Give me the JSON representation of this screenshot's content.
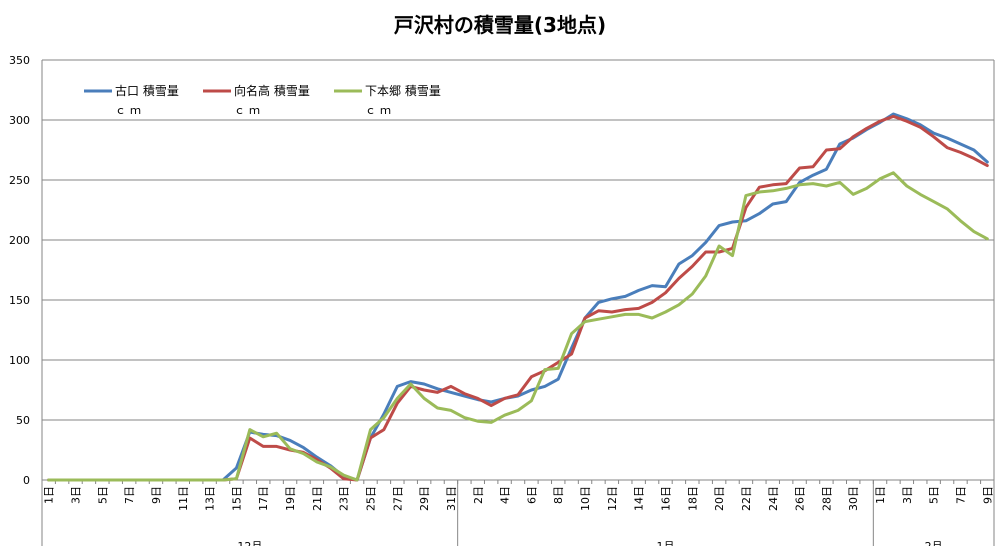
{
  "chart_data": {
    "type": "line",
    "title": "戸沢村の積雪量(3地点)",
    "ylim": [
      0,
      350
    ],
    "yticks": [
      0,
      50,
      100,
      150,
      200,
      250,
      300,
      350
    ],
    "grid": true,
    "legend_position": "top-left",
    "x_tick_labels": [
      "1日",
      "3日",
      "5日",
      "7日",
      "9日",
      "11日",
      "13日",
      "15日",
      "17日",
      "19日",
      "21日",
      "23日",
      "25日",
      "27日",
      "29日",
      "31日",
      "2日",
      "4日",
      "6日",
      "8日",
      "10日",
      "12日",
      "14日",
      "16日",
      "18日",
      "20日",
      "22日",
      "24日",
      "26日",
      "28日",
      "30日",
      "1日",
      "3日",
      "5日",
      "7日",
      "9日"
    ],
    "month_labels": [
      "12月",
      "1月",
      "2月"
    ],
    "x_days": [
      "12/1",
      "12/2",
      "12/3",
      "12/4",
      "12/5",
      "12/6",
      "12/7",
      "12/8",
      "12/9",
      "12/10",
      "12/11",
      "12/12",
      "12/13",
      "12/14",
      "12/15",
      "12/16",
      "12/17",
      "12/18",
      "12/19",
      "12/20",
      "12/21",
      "12/22",
      "12/23",
      "12/24",
      "12/25",
      "12/26",
      "12/27",
      "12/28",
      "12/29",
      "12/30",
      "12/31",
      "1/1",
      "1/2",
      "1/3",
      "1/4",
      "1/5",
      "1/6",
      "1/7",
      "1/8",
      "1/9",
      "1/10",
      "1/11",
      "1/12",
      "1/13",
      "1/14",
      "1/15",
      "1/16",
      "1/17",
      "1/18",
      "1/19",
      "1/20",
      "1/21",
      "1/22",
      "1/23",
      "1/24",
      "1/25",
      "1/26",
      "1/27",
      "1/28",
      "1/29",
      "1/30",
      "1/31",
      "2/1",
      "2/2",
      "2/3",
      "2/4",
      "2/5",
      "2/6",
      "2/7",
      "2/8",
      "2/9"
    ],
    "series": [
      {
        "name": "古口 積雪量",
        "unit": "ｃｍ",
        "color": "#4a7ebb",
        "values": [
          0,
          0,
          0,
          0,
          0,
          0,
          0,
          0,
          0,
          0,
          0,
          0,
          0,
          0,
          10,
          40,
          38,
          37,
          33,
          27,
          19,
          12,
          3,
          0,
          35,
          55,
          78,
          82,
          80,
          76,
          73,
          70,
          67,
          65,
          68,
          70,
          75,
          78,
          84,
          110,
          135,
          148,
          151,
          153,
          158,
          162,
          161,
          180,
          187,
          198,
          212,
          215,
          216,
          222,
          230,
          232,
          248,
          254,
          259,
          280,
          285,
          292,
          298,
          305,
          301,
          296,
          289,
          285,
          280,
          275,
          265
        ]
      },
      {
        "name": "向名高 積雪量",
        "unit": "ｃｍ",
        "color": "#be4b48",
        "values": [
          0,
          0,
          0,
          0,
          0,
          0,
          0,
          0,
          0,
          0,
          0,
          0,
          0,
          0,
          1,
          35,
          28,
          28,
          25,
          23,
          17,
          10,
          1,
          0,
          35,
          42,
          64,
          78,
          75,
          73,
          78,
          72,
          68,
          62,
          68,
          71,
          86,
          91,
          98,
          105,
          135,
          141,
          140,
          142,
          143,
          148,
          156,
          168,
          178,
          190,
          190,
          193,
          227,
          244,
          246,
          247,
          260,
          261,
          275,
          276,
          286,
          293,
          299,
          303,
          299,
          294,
          286,
          277,
          273,
          268,
          262
        ]
      },
      {
        "name": "下本郷 積雪量",
        "unit": "ｃｍ",
        "color": "#9bbb59",
        "values": [
          0,
          0,
          0,
          0,
          0,
          0,
          0,
          0,
          0,
          0,
          0,
          0,
          0,
          0,
          1,
          42,
          36,
          39,
          26,
          22,
          15,
          11,
          4,
          0,
          42,
          52,
          68,
          80,
          68,
          60,
          58,
          52,
          49,
          48,
          54,
          58,
          66,
          92,
          93,
          122,
          132,
          134,
          136,
          138,
          138,
          135,
          140,
          146,
          155,
          170,
          195,
          187,
          237,
          240,
          241,
          243,
          246,
          247,
          245,
          248,
          238,
          243,
          251,
          256,
          245,
          238,
          232,
          226,
          216,
          207,
          201
        ]
      }
    ]
  }
}
